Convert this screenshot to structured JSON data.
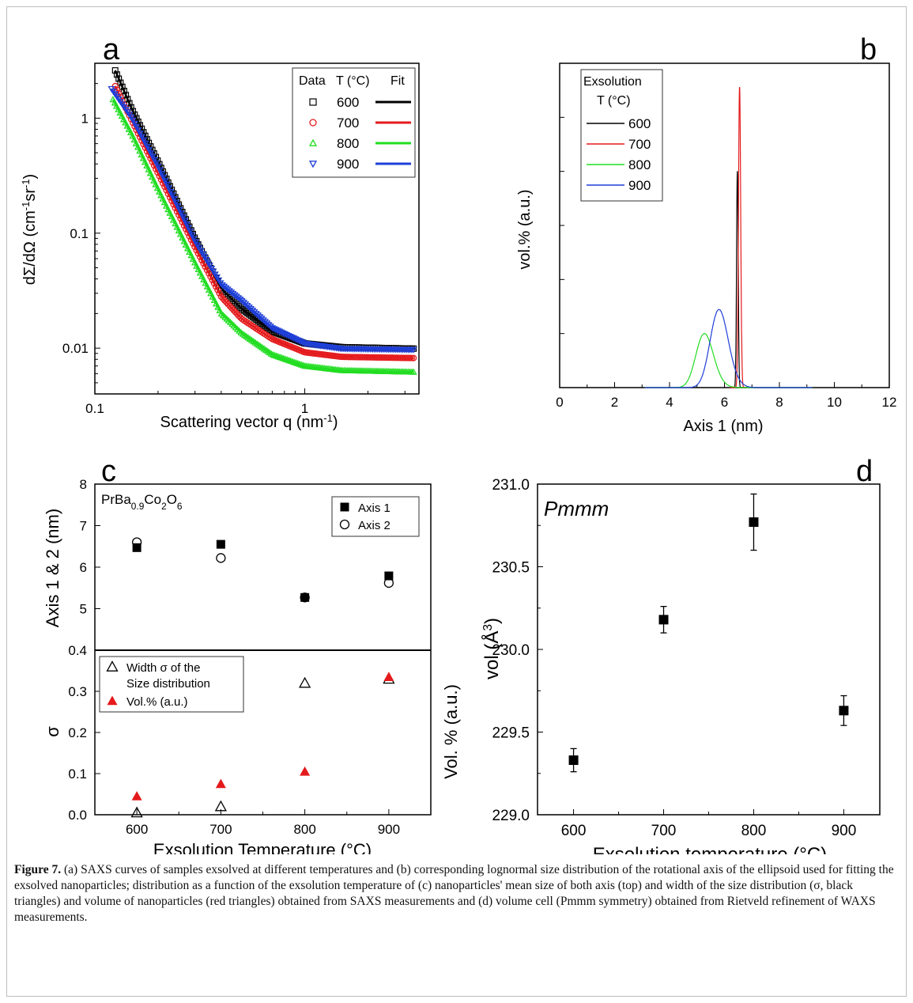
{
  "caption": {
    "label": "Figure 7.",
    "text": " (a) SAXS curves of samples exsolved at different temperatures and (b) corresponding lognormal size distribution of the rotational axis of the ellipsoid used for fitting the exsolved nanoparticles; distribution as a function of the exsolution temperature of (c) nanoparticles' mean size of both axis (top) and width of the size distribution (σ, black triangles) and volume of nanoparticles (red triangles) obtained from SAXS measurements and (d) volume cell (Pmmm symmetry) obtained from Rietveld refinement of WAXS measurements."
  },
  "chart_data": [
    {
      "panel": "a",
      "type": "scatter",
      "xscale": "log",
      "yscale": "log",
      "xlabel": "Scattering vector q (nm⁻¹)",
      "ylabel": "dΣ/dΩ (cm⁻¹sr⁻¹)",
      "xlim": [
        0.1,
        3.5
      ],
      "ylim": [
        0.004,
        3
      ],
      "xticks": [
        "0.1",
        "1"
      ],
      "yticks": [
        "0.01",
        "0.1",
        "1"
      ],
      "legend": {
        "header": [
          "Data",
          "T (°C)",
          "Fit"
        ],
        "placement": "top-right"
      },
      "series": [
        {
          "name": "600",
          "color": "#000000",
          "marker": "square",
          "points": [
            [
              0.125,
              2.6
            ],
            [
              0.15,
              1.2
            ],
            [
              0.2,
              0.42
            ],
            [
              0.3,
              0.09
            ],
            [
              0.4,
              0.033
            ],
            [
              0.5,
              0.022
            ],
            [
              0.7,
              0.014
            ],
            [
              1.0,
              0.011
            ],
            [
              1.5,
              0.0102
            ],
            [
              3.3,
              0.0099
            ]
          ]
        },
        {
          "name": "700",
          "color": "#e41a1c",
          "marker": "circle",
          "points": [
            [
              0.125,
              1.9
            ],
            [
              0.15,
              0.95
            ],
            [
              0.2,
              0.33
            ],
            [
              0.3,
              0.075
            ],
            [
              0.4,
              0.028
            ],
            [
              0.5,
              0.018
            ],
            [
              0.7,
              0.012
            ],
            [
              1.0,
              0.0092
            ],
            [
              1.5,
              0.0084
            ],
            [
              3.3,
              0.0082
            ]
          ]
        },
        {
          "name": "800",
          "color": "#22dd22",
          "marker": "triangle-up",
          "points": [
            [
              0.122,
              1.45
            ],
            [
              0.15,
              0.72
            ],
            [
              0.2,
              0.24
            ],
            [
              0.3,
              0.055
            ],
            [
              0.4,
              0.02
            ],
            [
              0.5,
              0.0135
            ],
            [
              0.7,
              0.0088
            ],
            [
              1.0,
              0.007
            ],
            [
              1.5,
              0.0064
            ],
            [
              3.3,
              0.0062
            ]
          ]
        },
        {
          "name": "900",
          "color": "#1f3fd8",
          "marker": "triangle-down",
          "points": [
            [
              0.12,
              1.8
            ],
            [
              0.15,
              1.0
            ],
            [
              0.2,
              0.38
            ],
            [
              0.3,
              0.085
            ],
            [
              0.4,
              0.036
            ],
            [
              0.5,
              0.026
            ],
            [
              0.7,
              0.015
            ],
            [
              1.0,
              0.011
            ],
            [
              1.5,
              0.0099
            ],
            [
              3.3,
              0.0097
            ]
          ]
        }
      ]
    },
    {
      "panel": "b",
      "type": "line",
      "xlabel": "Axis 1 (nm)",
      "ylabel": "vol.% (a.u.)",
      "xlim": [
        0,
        12
      ],
      "xticks": [
        "0",
        "2",
        "4",
        "6",
        "8",
        "10",
        "12"
      ],
      "legend": {
        "header": [
          "Exsolution",
          "T (°C)"
        ],
        "placement": "top-left"
      },
      "series": [
        {
          "name": "600",
          "color": "#000000",
          "peak": {
            "center": 6.47,
            "sigma": 0.03,
            "height": 0.72
          }
        },
        {
          "name": "700",
          "color": "#e41a1c",
          "peak": {
            "center": 6.55,
            "sigma": 0.04,
            "height": 1.0
          }
        },
        {
          "name": "800",
          "color": "#22dd22",
          "peak": {
            "center": 5.27,
            "sigma": 0.32,
            "height": 0.18
          }
        },
        {
          "name": "900",
          "color": "#1f3fd8",
          "peak": {
            "center": 5.8,
            "sigma": 0.33,
            "height": 0.26
          }
        }
      ]
    },
    {
      "panel": "c",
      "type": "scatter",
      "annotation": "PrBa0.9Co2O6",
      "xlabel": "Exsolution Temperature (°C)",
      "x": [
        600,
        700,
        800,
        900
      ],
      "xlim": [
        550,
        950
      ],
      "xticks": [
        "600",
        "700",
        "800",
        "900"
      ],
      "top": {
        "ylabel": "Axis 1 & 2 (nm)",
        "ylim": [
          4,
          8
        ],
        "yticks": [
          "5",
          "6",
          "7",
          "8"
        ],
        "series": [
          {
            "name": "Axis 1",
            "marker": "filled-square",
            "color": "#000000",
            "values": [
              6.47,
              6.55,
              5.27,
              5.79
            ]
          },
          {
            "name": "Axis 2",
            "marker": "open-circle",
            "color": "#000000",
            "values": [
              6.6,
              6.22,
              5.27,
              5.62
            ]
          }
        ]
      },
      "bottom": {
        "ylabel": "σ",
        "ylabel_right": "Vol. % (a.u.)",
        "ylim": [
          0,
          0.4
        ],
        "yticks": [
          "0.0",
          "0.1",
          "0.2",
          "0.3",
          "0.4"
        ],
        "series": [
          {
            "name": "Width σ of the",
            "name2": "Size distribution",
            "marker": "open-triangle",
            "color": "#000000",
            "values": [
              0.005,
              0.02,
              0.32,
              0.33
            ]
          },
          {
            "name": "Vol.% (a.u.)",
            "marker": "filled-triangle",
            "color": "#e41a1c",
            "values": [
              0.045,
              0.075,
              0.105,
              0.335
            ]
          }
        ]
      }
    },
    {
      "panel": "d",
      "type": "scatter",
      "annotation": "Pmmm",
      "xlabel": "Exsolution temperature (°C)",
      "ylabel": "vol (Å³)",
      "x": [
        600,
        700,
        800,
        900
      ],
      "xlim": [
        560,
        940
      ],
      "ylim": [
        229.0,
        231.0
      ],
      "xticks": [
        "600",
        "700",
        "800",
        "900"
      ],
      "yticks": [
        "229.0",
        "229.5",
        "230.0",
        "230.5",
        "231.0"
      ],
      "series": [
        {
          "name": "",
          "marker": "filled-square",
          "color": "#000000",
          "values": [
            229.33,
            230.18,
            230.77,
            229.63
          ],
          "errors": [
            0.07,
            0.08,
            0.17,
            0.09
          ]
        }
      ]
    }
  ]
}
